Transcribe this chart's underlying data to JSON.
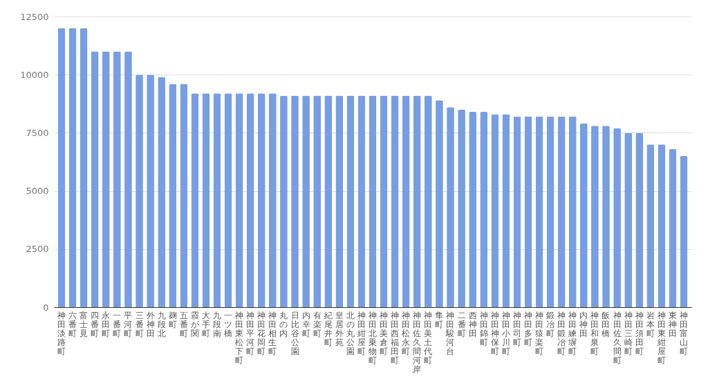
{
  "chart_data": {
    "type": "bar",
    "categories": [
      "神田淡路町",
      "六番町",
      "富士見",
      "四番町",
      "永田町",
      "一番町",
      "平河町",
      "三番町",
      "外神田",
      "九段北",
      "麹町",
      "五番町",
      "霞が関",
      "大手町",
      "九段南",
      "一ツ橋",
      "神田東松下町",
      "神田平河町",
      "神田花岡町",
      "神田相生町",
      "丸の内",
      "日比谷公園",
      "内幸町",
      "有楽町",
      "紀尾井町",
      "皇居外苑",
      "北の丸公園",
      "神田紺屋町",
      "神田北乗物町",
      "神田美倉町",
      "神田西福田町",
      "神田松永町",
      "神田佐久間河岸",
      "神田美土代町",
      "隼町",
      "神田駿河台",
      "二番町",
      "西神田",
      "神田錦町",
      "神田神保町",
      "神田小川町",
      "神田司町",
      "神田多町",
      "神田猿楽町",
      "鍛冶町",
      "神田鍛冶町",
      "神田練塀町",
      "内神田",
      "神田和泉町",
      "飯田橋",
      "神田佐久間町",
      "神田三崎町",
      "神田須田町",
      "岩本町",
      "神田東紺屋町",
      "東神田",
      "神田富山町"
    ],
    "values": [
      12000,
      12000,
      12000,
      11000,
      11000,
      11000,
      11000,
      10000,
      10000,
      9900,
      9600,
      9600,
      9200,
      9200,
      9200,
      9200,
      9200,
      9200,
      9200,
      9200,
      9100,
      9100,
      9100,
      9100,
      9100,
      9100,
      9100,
      9100,
      9100,
      9100,
      9100,
      9100,
      9100,
      9100,
      8900,
      8600,
      8500,
      8400,
      8400,
      8300,
      8300,
      8200,
      8200,
      8200,
      8200,
      8200,
      8200,
      7900,
      7800,
      7800,
      7700,
      7500,
      7500,
      7000,
      7000,
      6800,
      6500
    ],
    "color": "#779ee3",
    "ylim": [
      0,
      12500
    ],
    "yticks": [
      0,
      2500,
      5000,
      7500,
      10000,
      12500
    ],
    "grid": "y"
  }
}
